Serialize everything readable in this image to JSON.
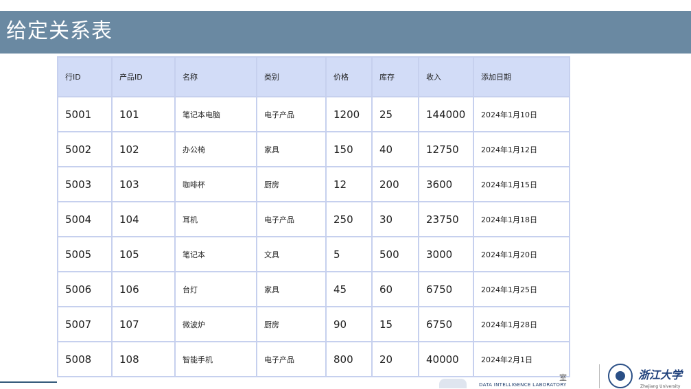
{
  "slide": {
    "title": "给定关系表"
  },
  "table": {
    "headers": [
      "行ID",
      "产品ID",
      "名称",
      "类别",
      "价格",
      "库存",
      "收入",
      "添加日期"
    ],
    "rows": [
      [
        "5001",
        "101",
        "笔记本电脑",
        "电子产品",
        "1200",
        "25",
        "144000",
        "2024年1月10日"
      ],
      [
        "5002",
        "102",
        "办公椅",
        "家具",
        "150",
        "40",
        "12750",
        "2024年1月12日"
      ],
      [
        "5003",
        "103",
        "咖啡杯",
        "厨房",
        "12",
        "200",
        "3600",
        "2024年1月15日"
      ],
      [
        "5004",
        "104",
        "耳机",
        "电子产品",
        "250",
        "30",
        "23750",
        "2024年1月18日"
      ],
      [
        "5005",
        "105",
        "笔记本",
        "文具",
        "5",
        "500",
        "3000",
        "2024年1月20日"
      ],
      [
        "5006",
        "106",
        "台灯",
        "家具",
        "45",
        "60",
        "6750",
        "2024年1月25日"
      ],
      [
        "5007",
        "107",
        "微波炉",
        "厨房",
        "90",
        "15",
        "6750",
        "2024年1月28日"
      ],
      [
        "5008",
        "108",
        "智能手机",
        "电子产品",
        "800",
        "20",
        "40000",
        "2024年2月1日"
      ]
    ]
  },
  "footer": {
    "lab_name": "DATA INTELLIGENCE LABORATORY",
    "lab_mark": "室",
    "university_logo": "浙江大学",
    "university_sub": "Zhejiang University"
  },
  "colors": {
    "title_bar": "#6a89a2",
    "header_row": "#d2dcf7",
    "cell_border": "#c6d0ee"
  }
}
